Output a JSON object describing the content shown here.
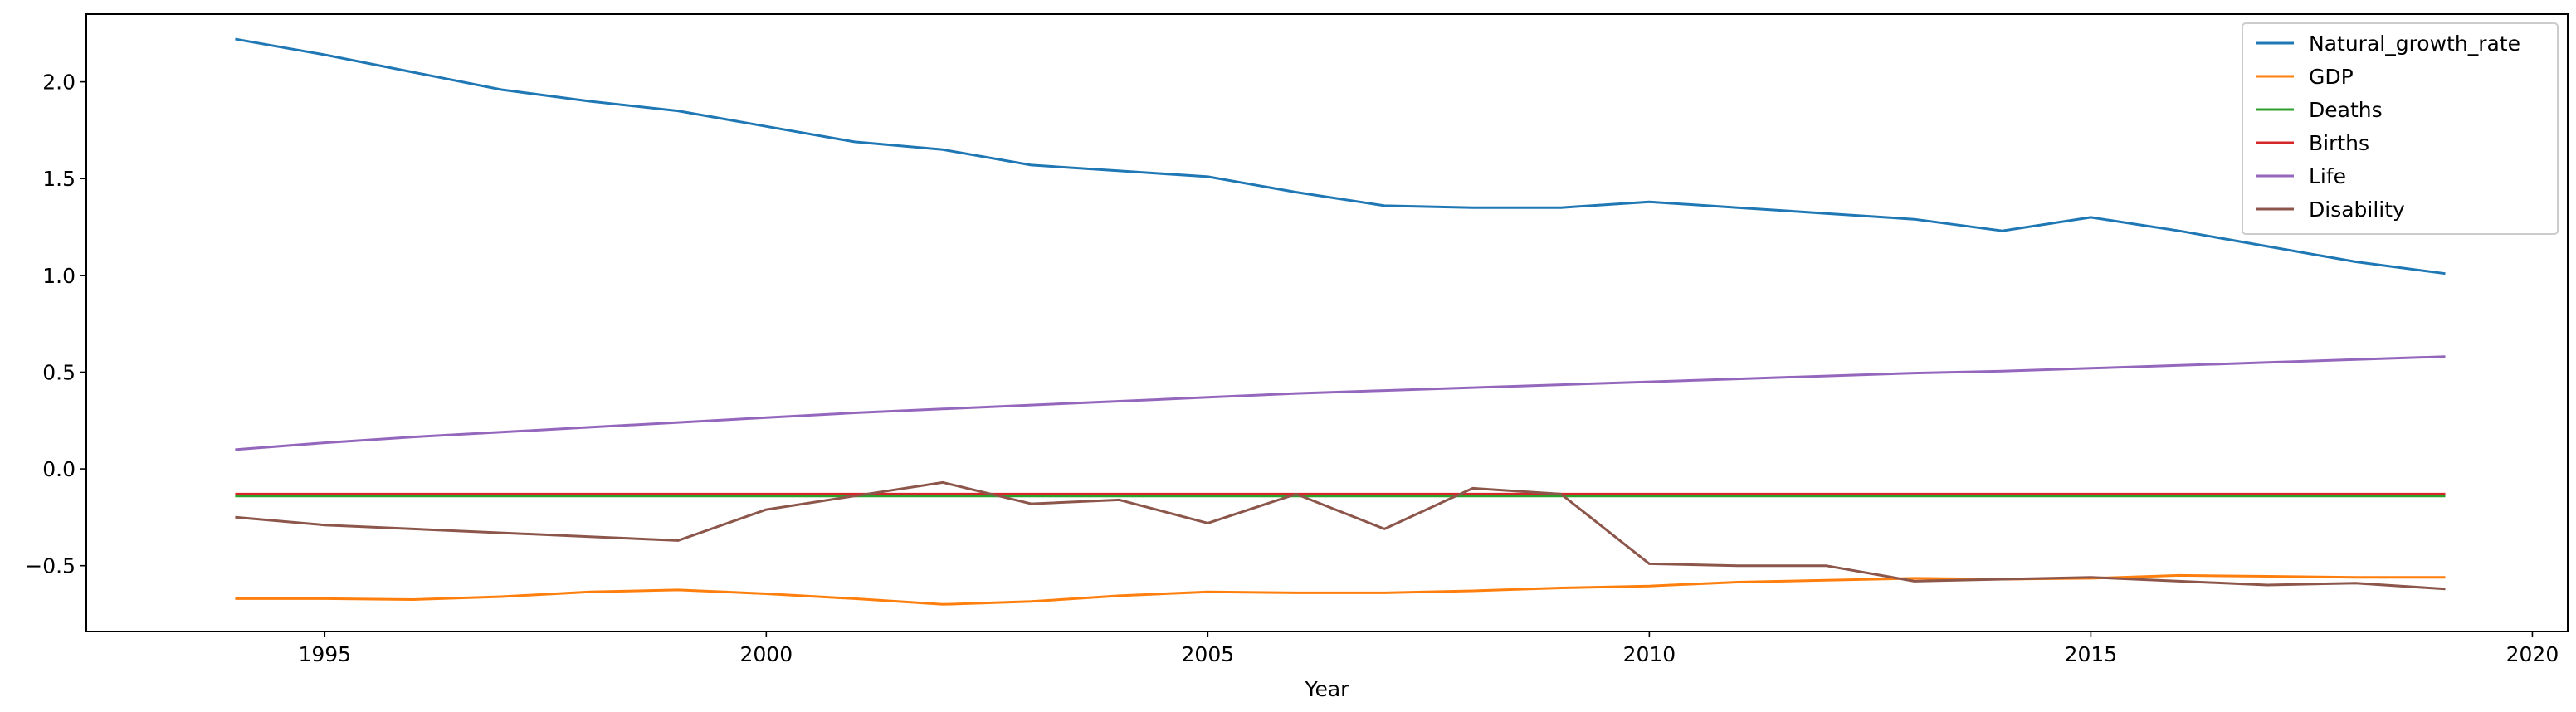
{
  "chart_data": {
    "type": "line",
    "title": "",
    "xlabel": "Year",
    "ylabel": "",
    "xlim": [
      1992.3,
      2020.4
    ],
    "ylim": [
      -0.84,
      2.35
    ],
    "xticks": [
      1995,
      2000,
      2005,
      2010,
      2015,
      2020
    ],
    "xtick_labels": [
      "1995",
      "2000",
      "2005",
      "2010",
      "2015",
      "2020"
    ],
    "yticks": [
      -0.5,
      0.0,
      0.5,
      1.0,
      1.5,
      2.0
    ],
    "ytick_labels": [
      "−0.5",
      "0.0",
      "0.5",
      "1.0",
      "1.5",
      "2.0"
    ],
    "grid": false,
    "legend_position": "top-right",
    "x": [
      1994,
      1995,
      1996,
      1997,
      1998,
      1999,
      2000,
      2001,
      2002,
      2003,
      2004,
      2005,
      2006,
      2007,
      2008,
      2009,
      2010,
      2011,
      2012,
      2013,
      2014,
      2015,
      2016,
      2017,
      2018,
      2019
    ],
    "series": [
      {
        "name": "Natural_growth_rate",
        "color": "#1f77b4",
        "values": [
          2.22,
          2.14,
          2.05,
          1.96,
          1.9,
          1.85,
          1.77,
          1.69,
          1.65,
          1.57,
          1.54,
          1.51,
          1.43,
          1.36,
          1.35,
          1.35,
          1.38,
          1.35,
          1.32,
          1.29,
          1.23,
          1.3,
          1.23,
          1.15,
          1.07,
          1.01
        ]
      },
      {
        "name": "GDP",
        "color": "#ff7f0e",
        "values": [
          -0.67,
          -0.67,
          -0.675,
          -0.66,
          -0.635,
          -0.625,
          -0.645,
          -0.67,
          -0.7,
          -0.685,
          -0.655,
          -0.635,
          -0.64,
          -0.64,
          -0.63,
          -0.615,
          -0.605,
          -0.585,
          -0.575,
          -0.565,
          -0.57,
          -0.565,
          -0.55,
          -0.555,
          -0.56,
          -0.56
        ]
      },
      {
        "name": "Deaths",
        "color": "#2ca02c",
        "values": [
          -0.14,
          -0.14,
          -0.14,
          -0.14,
          -0.14,
          -0.14,
          -0.14,
          -0.14,
          -0.14,
          -0.14,
          -0.14,
          -0.14,
          -0.14,
          -0.14,
          -0.14,
          -0.14,
          -0.14,
          -0.14,
          -0.14,
          -0.14,
          -0.14,
          -0.14,
          -0.14,
          -0.14,
          -0.14,
          -0.14
        ]
      },
      {
        "name": "Births",
        "color": "#d62728",
        "values": [
          -0.13,
          -0.13,
          -0.13,
          -0.13,
          -0.13,
          -0.13,
          -0.13,
          -0.13,
          -0.13,
          -0.13,
          -0.13,
          -0.13,
          -0.13,
          -0.13,
          -0.13,
          -0.13,
          -0.13,
          -0.13,
          -0.13,
          -0.13,
          -0.13,
          -0.13,
          -0.13,
          -0.13,
          -0.13,
          -0.13
        ]
      },
      {
        "name": "Life",
        "color": "#9467bd",
        "values": [
          0.1,
          0.135,
          0.165,
          0.19,
          0.215,
          0.24,
          0.265,
          0.29,
          0.31,
          0.33,
          0.35,
          0.37,
          0.39,
          0.405,
          0.42,
          0.435,
          0.45,
          0.465,
          0.48,
          0.495,
          0.505,
          0.52,
          0.535,
          0.55,
          0.565,
          0.58
        ]
      },
      {
        "name": "Disability",
        "color": "#8c564b",
        "values": [
          -0.25,
          -0.29,
          -0.31,
          -0.33,
          -0.35,
          -0.37,
          -0.21,
          -0.14,
          -0.07,
          -0.18,
          -0.16,
          -0.28,
          -0.13,
          -0.31,
          -0.1,
          -0.13,
          -0.49,
          -0.5,
          -0.5,
          -0.58,
          -0.57,
          -0.56,
          -0.58,
          -0.6,
          -0.59,
          -0.62
        ]
      }
    ]
  }
}
